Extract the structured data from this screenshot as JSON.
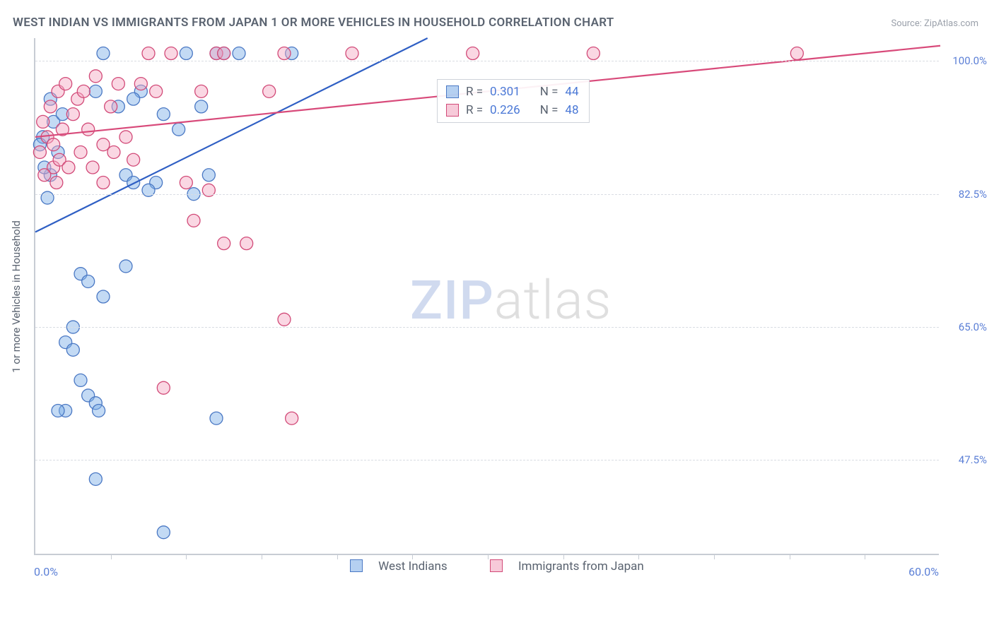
{
  "chart": {
    "type": "scatter-correlation",
    "title": "WEST INDIAN VS IMMIGRANTS FROM JAPAN 1 OR MORE VEHICLES IN HOUSEHOLD CORRELATION CHART",
    "source": "Source: ZipAtlas.com",
    "ylabel": "1 or more Vehicles in Household",
    "watermark_zip": "ZIP",
    "watermark_atlas": "atlas",
    "background_color": "#ffffff",
    "grid_color": "#d9dde3",
    "axis_color": "#c7ccd4",
    "text_color": "#5a6370",
    "value_color": "#5b7fd6",
    "title_fontsize": 17,
    "label_fontsize": 15,
    "tick_fontsize": 15,
    "xlim": [
      0,
      60
    ],
    "ylim": [
      35,
      103
    ],
    "x_tick_step": 5,
    "y_gridlines": [
      47.5,
      65.0,
      82.5,
      100.0
    ],
    "y_grid_labels": [
      "47.5%",
      "65.0%",
      "82.5%",
      "100.0%"
    ],
    "xlim_left_label": "0.0%",
    "xlim_right_label": "60.0%",
    "marker_radius": 9,
    "series": [
      {
        "key": "blue",
        "label": "West Indians",
        "color_fill": "#7aaee6",
        "color_stroke": "#4a78c4",
        "R": "0.301",
        "N": "44",
        "trend": {
          "x1": 0,
          "y1": 77.5,
          "x2": 26,
          "y2": 103
        },
        "points": [
          [
            0.5,
            90
          ],
          [
            1.0,
            85
          ],
          [
            1.2,
            92
          ],
          [
            1.5,
            88
          ],
          [
            0.8,
            82
          ],
          [
            1.0,
            95
          ],
          [
            4.0,
            96
          ],
          [
            4.5,
            101
          ],
          [
            5.5,
            94
          ],
          [
            6.0,
            85
          ],
          [
            6.5,
            84
          ],
          [
            7.0,
            96
          ],
          [
            8.0,
            84
          ],
          [
            8.5,
            93
          ],
          [
            9.5,
            91
          ],
          [
            10.0,
            101
          ],
          [
            10.5,
            82.5
          ],
          [
            11.0,
            94
          ],
          [
            11.5,
            85
          ],
          [
            12.0,
            101
          ],
          [
            12.5,
            101
          ],
          [
            13.5,
            101
          ],
          [
            17.0,
            101
          ],
          [
            3.0,
            72
          ],
          [
            3.5,
            71
          ],
          [
            4.5,
            69
          ],
          [
            2.5,
            65
          ],
          [
            2.0,
            63
          ],
          [
            2.5,
            62
          ],
          [
            3.0,
            58
          ],
          [
            3.5,
            56
          ],
          [
            4.0,
            55
          ],
          [
            4.2,
            54
          ],
          [
            2.0,
            54
          ],
          [
            1.5,
            54
          ],
          [
            6.0,
            73
          ],
          [
            12.0,
            53
          ],
          [
            4.0,
            45
          ],
          [
            8.5,
            38
          ],
          [
            7.5,
            83
          ],
          [
            6.5,
            95
          ],
          [
            0.3,
            89
          ],
          [
            0.6,
            86
          ],
          [
            1.8,
            93
          ]
        ]
      },
      {
        "key": "pink",
        "label": "Immigrants from Japan",
        "color_fill": "#f4a6c0",
        "color_stroke": "#d24a78",
        "R": "0.226",
        "N": "48",
        "trend": {
          "x1": 0,
          "y1": 90,
          "x2": 60,
          "y2": 102
        },
        "points": [
          [
            0.3,
            88
          ],
          [
            0.5,
            92
          ],
          [
            0.8,
            90
          ],
          [
            1.0,
            94
          ],
          [
            1.2,
            89
          ],
          [
            1.5,
            96
          ],
          [
            1.8,
            91
          ],
          [
            2.0,
            97
          ],
          [
            2.5,
            93
          ],
          [
            2.8,
            95
          ],
          [
            3.0,
            88
          ],
          [
            3.2,
            96
          ],
          [
            3.5,
            91
          ],
          [
            4.0,
            98
          ],
          [
            4.5,
            89
          ],
          [
            1.2,
            86
          ],
          [
            1.6,
            87
          ],
          [
            2.2,
            86
          ],
          [
            5.0,
            94
          ],
          [
            5.5,
            97
          ],
          [
            6.0,
            90
          ],
          [
            7.0,
            97
          ],
          [
            7.5,
            101
          ],
          [
            8.0,
            96
          ],
          [
            9.0,
            101
          ],
          [
            10.0,
            84
          ],
          [
            11.0,
            96
          ],
          [
            12.0,
            101
          ],
          [
            12.5,
            101
          ],
          [
            15.5,
            96
          ],
          [
            16.5,
            101
          ],
          [
            21.0,
            101
          ],
          [
            29.0,
            101
          ],
          [
            37.0,
            101
          ],
          [
            50.5,
            101
          ],
          [
            10.5,
            79
          ],
          [
            11.5,
            83
          ],
          [
            12.5,
            76
          ],
          [
            14.0,
            76
          ],
          [
            8.5,
            57
          ],
          [
            16.5,
            66
          ],
          [
            17.0,
            53
          ],
          [
            4.5,
            84
          ],
          [
            1.4,
            84
          ],
          [
            0.6,
            85
          ],
          [
            5.2,
            88
          ],
          [
            6.5,
            87
          ],
          [
            3.8,
            86
          ]
        ]
      }
    ],
    "legend_labels": {
      "R": "R =",
      "N": "N ="
    },
    "bottom_legend": {
      "blue": "West Indians",
      "pink": "Immigrants from Japan"
    }
  }
}
